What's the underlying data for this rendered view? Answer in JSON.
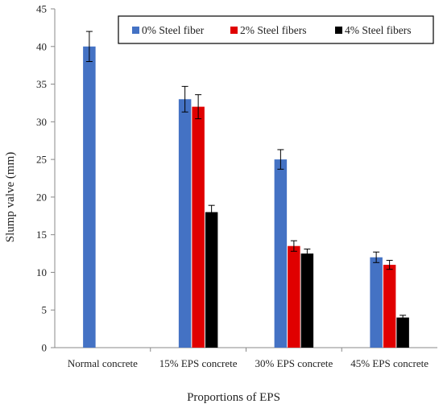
{
  "chart_data": {
    "type": "bar",
    "title": "",
    "xlabel": "Proportions of EPS",
    "ylabel": "Slump valve (mm)",
    "ylim": [
      0,
      45
    ],
    "yticks": [
      0,
      5,
      10,
      15,
      20,
      25,
      30,
      35,
      40,
      45
    ],
    "grid": false,
    "legend_position": "top-right",
    "categories": [
      "Normal concrete",
      "15% EPS concrete",
      "30% EPS concrete",
      "45% EPS concrete"
    ],
    "series": [
      {
        "name": "0% Steel fiber",
        "color": "#4472C4",
        "values": [
          40,
          33,
          25,
          12
        ],
        "errors": [
          2,
          1.7,
          1.3,
          0.7
        ]
      },
      {
        "name": "2% Steel fibers",
        "color": "#E00000",
        "values": [
          null,
          32,
          13.5,
          11
        ],
        "errors": [
          null,
          1.6,
          0.7,
          0.6
        ]
      },
      {
        "name": "4% Steel fibers",
        "color": "#000000",
        "values": [
          null,
          18,
          12.5,
          4
        ],
        "errors": [
          null,
          0.9,
          0.6,
          0.3
        ]
      }
    ]
  }
}
